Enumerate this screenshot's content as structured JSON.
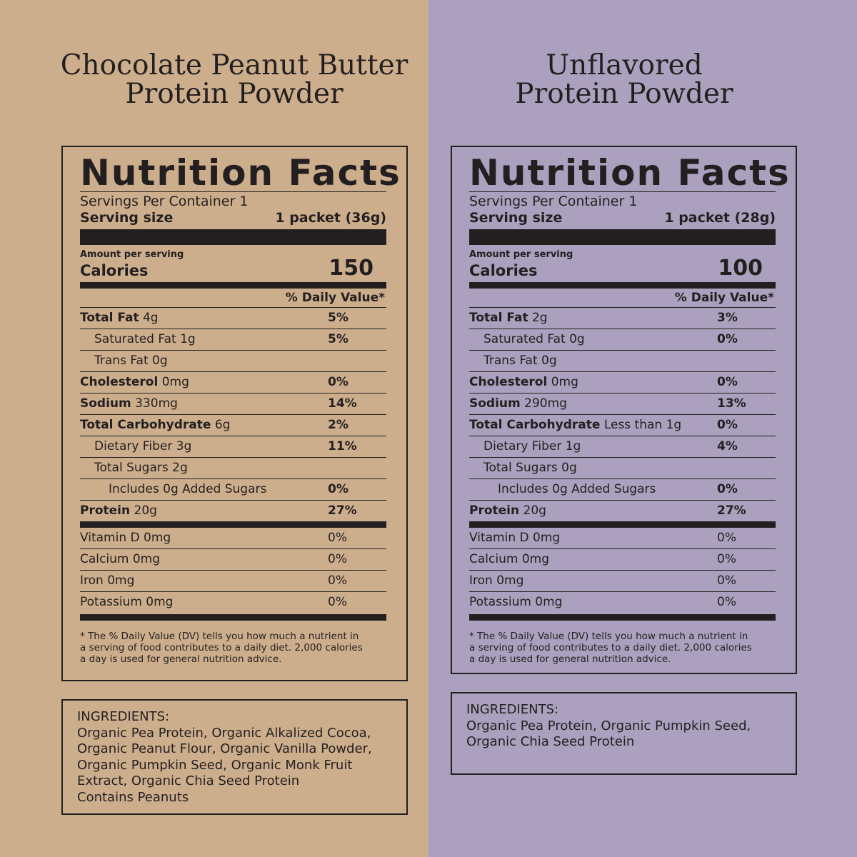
{
  "left": {
    "title_lines": [
      "Chocolate Peanut Butter",
      "Protein Powder"
    ],
    "nf": {
      "heading": "Nutrition Facts",
      "servings": "Servings Per Container 1",
      "serving_label": "Serving size",
      "serving_value": "1 packet (36g)",
      "amount_label": "Amount per serving",
      "calories_label": "Calories",
      "calories_value": "150",
      "dv_head": "% Daily Value*",
      "rows": [
        {
          "name": "Total Fat",
          "amt": "4g",
          "pct": "5%"
        },
        {
          "name": "Saturated Fat",
          "amt": "1g",
          "pct": "5%"
        },
        {
          "name": "Trans Fat",
          "amt": "0g",
          "pct": ""
        },
        {
          "name": "Cholesterol",
          "amt": "0mg",
          "pct": "0%"
        },
        {
          "name": "Sodium",
          "amt": "330mg",
          "pct": "14%"
        },
        {
          "name": "Total Carbohydrate",
          "amt": "6g",
          "pct": "2%"
        },
        {
          "name": "Dietary Fiber",
          "amt": "3g",
          "pct": "11%"
        },
        {
          "name": "Total Sugars",
          "amt": "2g",
          "pct": ""
        },
        {
          "name": "Includes 0g Added Sugars",
          "amt": "",
          "pct": "0%"
        },
        {
          "name": "Protein",
          "amt": "20g",
          "pct": "27%"
        }
      ],
      "vitamins": [
        {
          "name": "Vitamin D 0mg",
          "pct": "0%"
        },
        {
          "name": "Calcium 0mg",
          "pct": "0%"
        },
        {
          "name": "Iron 0mg",
          "pct": "0%"
        },
        {
          "name": "Potassium 0mg",
          "pct": "0%"
        }
      ],
      "footnote_lines": [
        "* The % Daily Value (DV) tells you how much a nutrient in",
        "a serving of food contributes to a daily diet. 2,000 calories",
        "a day is used for general nutrition advice."
      ]
    },
    "ingredients_lines": [
      "INGREDIENTS:",
      "Organic Pea Protein, Organic Alkalized Cocoa,",
      "Organic Peanut Flour, Organic Vanilla Powder,",
      "Organic Pumpkin Seed, Organic Monk Fruit",
      "Extract, Organic Chia Seed Protein",
      "Contains Peanuts"
    ]
  },
  "right": {
    "title_lines": [
      "Unflavored",
      "Protein Powder"
    ],
    "nf": {
      "heading": "Nutrition Facts",
      "servings": "Servings Per Container 1",
      "serving_label": "Serving size",
      "serving_value": "1 packet (28g)",
      "amount_label": "Amount per serving",
      "calories_label": "Calories",
      "calories_value": "100",
      "dv_head": "% Daily Value*",
      "rows": [
        {
          "name": "Total Fat",
          "amt": "2g",
          "pct": "3%"
        },
        {
          "name": "Saturated Fat",
          "amt": "0g",
          "pct": "0%"
        },
        {
          "name": "Trans Fat",
          "amt": "0g",
          "pct": ""
        },
        {
          "name": "Cholesterol",
          "amt": "0mg",
          "pct": "0%"
        },
        {
          "name": "Sodium",
          "amt": "290mg",
          "pct": "13%"
        },
        {
          "name": "Total Carbohydrate",
          "amt": "Less than 1g",
          "pct": "0%"
        },
        {
          "name": "Dietary Fiber",
          "amt": "1g",
          "pct": "4%"
        },
        {
          "name": "Total Sugars",
          "amt": "0g",
          "pct": ""
        },
        {
          "name": "Includes 0g Added Sugars",
          "amt": "",
          "pct": "0%"
        },
        {
          "name": "Protein",
          "amt": "20g",
          "pct": "27%"
        }
      ],
      "vitamins": [
        {
          "name": "Vitamin D 0mg",
          "pct": "0%"
        },
        {
          "name": "Calcium 0mg",
          "pct": "0%"
        },
        {
          "name": "Iron 0mg",
          "pct": "0%"
        },
        {
          "name": "Potassium 0mg",
          "pct": "0%"
        }
      ],
      "footnote_lines": [
        "* The % Daily Value (DV) tells you how much a nutrient in",
        "a serving of food contributes to a daily diet. 2,000 calories",
        "a day is used for general nutrition advice."
      ]
    },
    "ingredients_lines": [
      "INGREDIENTS:",
      "Organic Pea Protein, Organic Pumpkin Seed,",
      "Organic Chia Seed Protein"
    ]
  }
}
